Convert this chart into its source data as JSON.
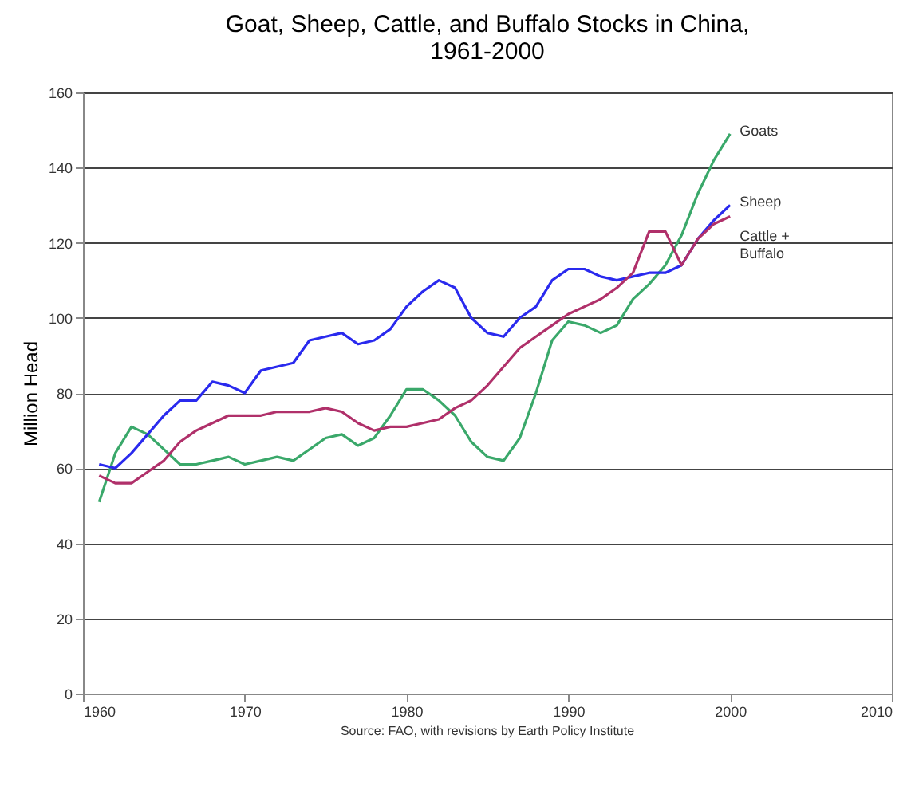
{
  "chart_data": {
    "type": "line",
    "title": "Goat, Sheep, Cattle, and Buffalo Stocks in China,\n1961-2000",
    "ylabel": "Million Head",
    "annotations": [
      "Source: FAO, with revisions by Earth Policy Institute"
    ],
    "x": [
      1961,
      1962,
      1963,
      1964,
      1965,
      1966,
      1967,
      1968,
      1969,
      1970,
      1971,
      1972,
      1973,
      1974,
      1975,
      1976,
      1977,
      1978,
      1979,
      1980,
      1981,
      1982,
      1983,
      1984,
      1985,
      1986,
      1987,
      1988,
      1989,
      1990,
      1991,
      1992,
      1993,
      1994,
      1995,
      1996,
      1997,
      1998,
      1999,
      2000
    ],
    "series": [
      {
        "name": "Goats",
        "color": "#3aa86a",
        "values": [
          51,
          64,
          71,
          69,
          65,
          61,
          61,
          62,
          63,
          61,
          62,
          63,
          62,
          65,
          68,
          69,
          66,
          68,
          74,
          81,
          81,
          78,
          74,
          67,
          63,
          62,
          68,
          80,
          94,
          99,
          98,
          96,
          98,
          105,
          109,
          114,
          122,
          133,
          142,
          149
        ]
      },
      {
        "name": "Sheep",
        "color": "#2a2aee",
        "values": [
          61,
          60,
          64,
          69,
          74,
          78,
          78,
          83,
          82,
          80,
          86,
          87,
          88,
          94,
          95,
          96,
          93,
          94,
          97,
          103,
          107,
          110,
          108,
          100,
          96,
          95,
          100,
          103,
          110,
          113,
          113,
          111,
          110,
          111,
          112,
          112,
          114,
          121,
          126,
          130
        ]
      },
      {
        "name": "Cattle +\nBuffalo",
        "color": "#b0306a",
        "values": [
          58,
          56,
          56,
          59,
          62,
          67,
          70,
          72,
          74,
          74,
          74,
          75,
          75,
          75,
          76,
          75,
          72,
          70,
          71,
          71,
          72,
          73,
          76,
          78,
          82,
          87,
          92,
          95,
          98,
          101,
          103,
          105,
          108,
          112,
          123,
          123,
          114,
          121,
          125,
          127
        ]
      }
    ],
    "xlim": [
      1960,
      2010
    ],
    "xticks": [
      1960,
      1970,
      1980,
      1990,
      2000,
      2010
    ],
    "ylim": [
      0,
      160
    ],
    "yticks": [
      0,
      20,
      40,
      60,
      80,
      100,
      120,
      140,
      160
    ],
    "grid": "y",
    "legend": false
  }
}
